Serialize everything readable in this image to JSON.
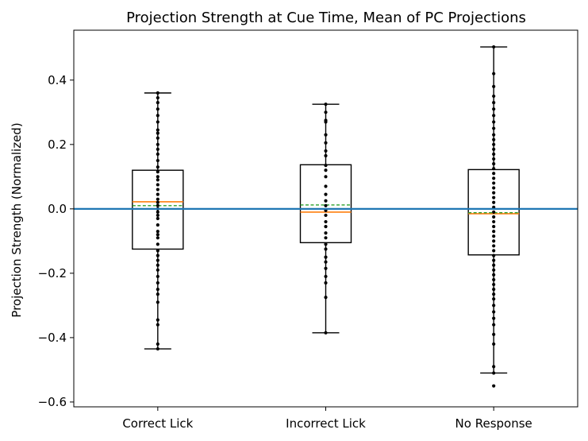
{
  "chart_data": {
    "type": "box",
    "title": "Projection Strength at Cue Time, Mean of PC Projections",
    "xlabel": "",
    "ylabel": "Projection Strength (Normalized)",
    "ylim": [
      -0.615,
      0.555
    ],
    "yticks": [
      -0.6,
      -0.4,
      -0.2,
      0.0,
      0.2,
      0.4
    ],
    "ytick_labels": [
      "−0.6",
      "−0.4",
      "−0.2",
      "0.0",
      "0.2",
      "0.4"
    ],
    "categories": [
      "Correct Lick",
      "Incorrect Lick",
      "No Response"
    ],
    "reference_line": {
      "y": 0.0,
      "color": "#1f77b4"
    },
    "colors": {
      "box": "#000000",
      "median": "#ff7f0e",
      "mean": "#2ca02c",
      "points": "#000000"
    },
    "grid": false,
    "legend": "none",
    "boxes": [
      {
        "label": "Correct Lick",
        "whisker_low": -0.435,
        "q1": -0.125,
        "median": 0.022,
        "mean": 0.01,
        "q3": 0.12,
        "whisker_high": 0.36,
        "points": [
          0.36,
          0.345,
          0.33,
          0.31,
          0.29,
          0.27,
          0.245,
          0.235,
          0.22,
          0.2,
          0.185,
          0.17,
          0.15,
          0.13,
          0.115,
          0.1,
          0.09,
          0.075,
          0.06,
          0.045,
          0.03,
          0.02,
          0.01,
          0.0,
          -0.01,
          -0.02,
          -0.03,
          -0.05,
          -0.07,
          -0.08,
          -0.09,
          -0.11,
          -0.13,
          -0.145,
          -0.16,
          -0.175,
          -0.19,
          -0.21,
          -0.23,
          -0.25,
          -0.265,
          -0.29,
          -0.345,
          -0.36,
          -0.42,
          -0.435
        ]
      },
      {
        "label": "Incorrect Lick",
        "whisker_low": -0.385,
        "q1": -0.105,
        "median": -0.01,
        "mean": 0.012,
        "q3": 0.137,
        "whisker_high": 0.325,
        "points": [
          0.325,
          0.3,
          0.275,
          0.27,
          0.23,
          0.205,
          0.18,
          0.165,
          0.135,
          0.12,
          0.1,
          0.07,
          0.045,
          0.025,
          0.01,
          -0.005,
          -0.02,
          -0.04,
          -0.055,
          -0.075,
          -0.09,
          -0.11,
          -0.125,
          -0.15,
          -0.165,
          -0.185,
          -0.21,
          -0.23,
          -0.275,
          -0.385
        ]
      },
      {
        "label": "No Response",
        "whisker_low": -0.51,
        "q1": -0.143,
        "median": -0.015,
        "mean": -0.012,
        "q3": 0.122,
        "whisker_high": 0.503,
        "points": [
          0.503,
          0.42,
          0.38,
          0.35,
          0.33,
          0.31,
          0.29,
          0.27,
          0.25,
          0.23,
          0.215,
          0.2,
          0.185,
          0.17,
          0.155,
          0.14,
          0.125,
          0.11,
          0.095,
          0.08,
          0.065,
          0.05,
          0.035,
          0.02,
          0.005,
          -0.01,
          -0.025,
          -0.04,
          -0.055,
          -0.07,
          -0.085,
          -0.1,
          -0.115,
          -0.13,
          -0.145,
          -0.16,
          -0.175,
          -0.19,
          -0.205,
          -0.22,
          -0.235,
          -0.25,
          -0.265,
          -0.28,
          -0.3,
          -0.32,
          -0.34,
          -0.36,
          -0.39,
          -0.42,
          -0.49,
          -0.51,
          -0.55
        ]
      }
    ]
  }
}
